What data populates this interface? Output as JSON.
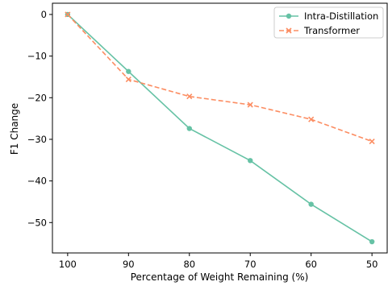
{
  "chart_data": {
    "type": "line",
    "title": "",
    "xlabel": "Percentage of Weight Remaining (%)",
    "ylabel": "F1 Change",
    "x": [
      100,
      90,
      80,
      70,
      60,
      50
    ],
    "xlim": [
      102.5,
      47.5
    ],
    "ylim": [
      -57.3,
      2.7
    ],
    "x_ticks": [
      100,
      90,
      80,
      70,
      60,
      50
    ],
    "y_ticks": [
      0,
      -10,
      -20,
      -30,
      -40,
      -50
    ],
    "x_tick_labels": [
      "100",
      "90",
      "80",
      "70",
      "60",
      "50"
    ],
    "y_tick_labels": [
      "0",
      "−10",
      "−20",
      "−30",
      "−40",
      "−50"
    ],
    "grid": false,
    "legend_position": "top-right",
    "series": [
      {
        "name": "Intra-Distillation",
        "values": [
          0,
          -13.7,
          -27.4,
          -35.1,
          -45.6,
          -54.6
        ],
        "color": "#66c2a5",
        "marker": "circle",
        "line_style": "solid"
      },
      {
        "name": "Transformer",
        "values": [
          0,
          -15.6,
          -19.7,
          -21.7,
          -25.2,
          -30.5
        ],
        "color": "#fc8d62",
        "marker": "x",
        "line_style": "dashed"
      }
    ]
  }
}
